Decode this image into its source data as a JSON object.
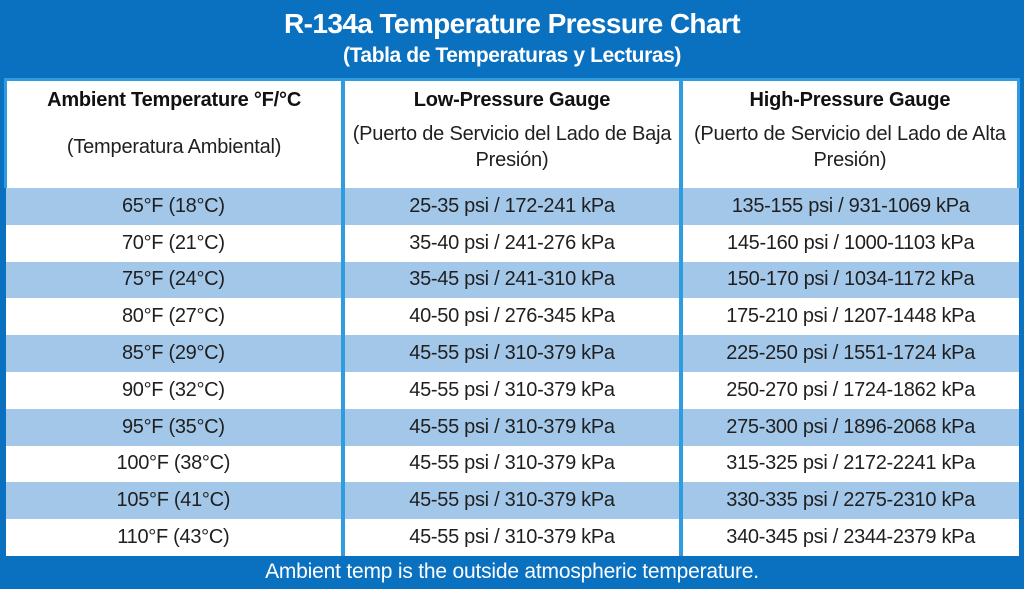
{
  "page": {
    "title": "R-134a Temperature Pressure Chart",
    "subtitle": "(Tabla de Temperaturas y Lecturas)",
    "footnote": "Ambient temp is the outside atmospheric temperature."
  },
  "colors": {
    "page_blue": "#0A70C0",
    "grid_blue": "#2E9CDE",
    "row_alt_blue": "#A3C7E9",
    "row_white": "#FFFFFF",
    "text_dark": "#1F1F1F",
    "text_white": "#FFFFFF"
  },
  "chart_data": {
    "type": "table",
    "title": "R-134a Temperature Pressure Chart",
    "subtitle": "(Tabla de Temperaturas y Lecturas)",
    "columns": [
      {
        "en": "Ambient Temperature °F/°C",
        "es": "(Temperatura Ambiental)"
      },
      {
        "en": "Low-Pressure Gauge",
        "es": "(Puerto de Servicio del Lado de Baja Presión)"
      },
      {
        "en": "High-Pressure Gauge",
        "es": "(Puerto de Servicio del Lado de Alta Presión)"
      }
    ],
    "rows": [
      [
        "65°F (18°C)",
        "25-35 psi / 172-241 kPa",
        "135-155 psi / 931-1069 kPa"
      ],
      [
        "70°F (21°C)",
        "35-40 psi / 241-276 kPa",
        "145-160 psi / 1000-1103 kPa"
      ],
      [
        "75°F (24°C)",
        "35-45 psi / 241-310 kPa",
        "150-170 psi / 1034-1172 kPa"
      ],
      [
        "80°F (27°C)",
        "40-50 psi / 276-345 kPa",
        "175-210 psi / 1207-1448 kPa"
      ],
      [
        "85°F (29°C)",
        "45-55 psi / 310-379 kPa",
        "225-250 psi / 1551-1724 kPa"
      ],
      [
        "90°F (32°C)",
        "45-55 psi / 310-379 kPa",
        "250-270 psi / 1724-1862 kPa"
      ],
      [
        "95°F (35°C)",
        "45-55 psi / 310-379 kPa",
        "275-300 psi / 1896-2068 kPa"
      ],
      [
        "100°F (38°C)",
        "45-55 psi / 310-379 kPa",
        "315-325 psi / 2172-2241 kPa"
      ],
      [
        "105°F (41°C)",
        "45-55 psi / 310-379 kPa",
        "330-335 psi / 2275-2310 kPa"
      ],
      [
        "110°F (43°C)",
        "45-55 psi / 310-379 kPa",
        "340-345 psi / 2344-2379 kPa"
      ]
    ],
    "footnote": "Ambient temp is the outside atmospheric temperature."
  }
}
